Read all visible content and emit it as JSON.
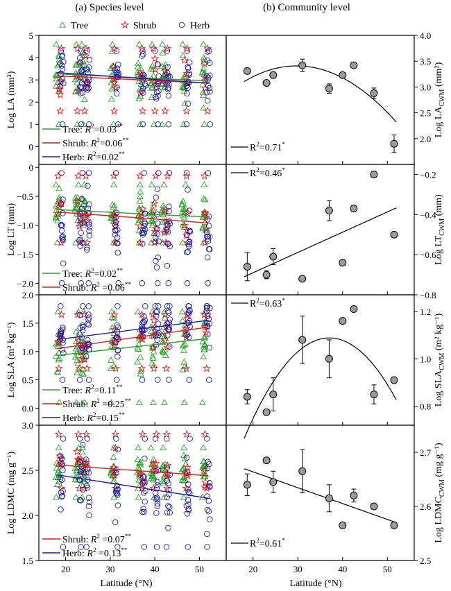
{
  "figure": {
    "col_a_title": "(a) Species level",
    "col_b_title": "(b) Community level",
    "legend": [
      {
        "label": "Tree",
        "marker": "triangle",
        "color": "#2ca02c"
      },
      {
        "label": "Shrub",
        "marker": "star",
        "color": "#e41a1c"
      },
      {
        "label": "Herb",
        "marker": "circle",
        "color": "#1f1f9f"
      }
    ],
    "x_label": "Latitude (°N)",
    "x_ticks": [
      20,
      30,
      40,
      50
    ]
  },
  "chart_data": [
    {
      "id": "la-species",
      "panel": "a",
      "type": "scatter",
      "ylabel": "Log LA (mm²)",
      "ylim": [
        -0.8,
        5.0
      ],
      "yticks": [
        "0",
        "1",
        "2",
        "3",
        "4",
        "5"
      ],
      "xlim": [
        14,
        56
      ],
      "latitudes": [
        18.7,
        23,
        24.5,
        31,
        37,
        40,
        42.5,
        47,
        51.5
      ],
      "series": [
        {
          "name": "Tree",
          "color": "#2ca02c",
          "fit": [
            [
              18,
              3.27
            ],
            [
              52,
              2.95
            ]
          ],
          "spread": [
            1.0,
            4.6
          ]
        },
        {
          "name": "Shrub",
          "color": "#e41a1c",
          "fit": [
            [
              18,
              3.18
            ],
            [
              52,
              2.85
            ]
          ],
          "spread": [
            1.6,
            4.4
          ]
        },
        {
          "name": "Herb",
          "color": "#1f1f9f",
          "fit": [
            [
              18,
              3.33
            ],
            [
              52,
              2.85
            ]
          ],
          "spread": [
            1.0,
            4.3
          ]
        }
      ],
      "stats": [
        {
          "label": "Tree: ",
          "r2": "=0.03",
          "sig": "**",
          "color": "#2ca02c"
        },
        {
          "label": "Shrub: ",
          "r2": "=0.06",
          "sig": "**",
          "color": "#e41a1c"
        },
        {
          "label": "Herb: ",
          "r2": "=0.02",
          "sig": "**",
          "color": "#1f1f9f"
        }
      ]
    },
    {
      "id": "la-community",
      "panel": "b",
      "type": "scatter",
      "ylabel": "Log LA",
      "ylabel_sub": "CWM",
      "ylabel_unit": " (mm²)",
      "ylim": [
        1.5,
        4.0
      ],
      "yticks": [
        "2.0",
        "2.5",
        "3.0",
        "3.5",
        "4.0"
      ],
      "ytick_vals": [
        2.0,
        2.5,
        3.0,
        3.5,
        4.0
      ],
      "xlim": [
        14,
        56
      ],
      "points": [
        {
          "x": 18.7,
          "y": 3.31,
          "err": 0
        },
        {
          "x": 23,
          "y": 3.08,
          "err": 0
        },
        {
          "x": 24.5,
          "y": 3.23,
          "err": 0.06
        },
        {
          "x": 31,
          "y": 3.42,
          "err": 0.12
        },
        {
          "x": 37,
          "y": 2.97,
          "err": 0.09
        },
        {
          "x": 40,
          "y": 3.23,
          "err": 0
        },
        {
          "x": 42.5,
          "y": 3.42,
          "err": 0
        },
        {
          "x": 47,
          "y": 2.88,
          "err": 0.1
        },
        {
          "x": 51.5,
          "y": 1.9,
          "err": 0.17
        }
      ],
      "fit": {
        "type": "quadratic",
        "x0": 18,
        "x1": 52,
        "coef": [
          -0.0022,
          0.1309,
          1.4614
        ]
      },
      "stats": [
        {
          "label": "",
          "r2": "=0.71",
          "sig": "*"
        }
      ]
    },
    {
      "id": "lt-species",
      "panel": "a",
      "type": "scatter",
      "ylabel": "Log LT (mm)",
      "ylim": [
        -2.2,
        0.05
      ],
      "yticks": [
        "−2.0",
        "−1.5",
        "−1.0",
        "−0.5",
        "0"
      ],
      "ytick_vals": [
        -2.0,
        -1.5,
        -1.0,
        -0.5,
        0
      ],
      "xlim": [
        14,
        56
      ],
      "latitudes": [
        18.7,
        23,
        24.5,
        31,
        37,
        40,
        42.5,
        47,
        51.5
      ],
      "series": [
        {
          "name": "Tree",
          "color": "#2ca02c",
          "fit": [
            [
              18,
              -0.73
            ],
            [
              52,
              -0.86
            ]
          ],
          "spread": [
            -1.3,
            -0.3
          ]
        },
        {
          "name": "Shrub",
          "color": "#e41a1c",
          "fit": [
            [
              18,
              -0.77
            ],
            [
              52,
              -0.96
            ]
          ],
          "spread": [
            -1.3,
            -0.15
          ]
        },
        {
          "name": "Herb",
          "color": "#1f1f9f",
          "fit": null,
          "spread": [
            -2.0,
            -0.1
          ]
        }
      ],
      "stats": [
        {
          "label": "Tree: ",
          "r2": "=0.02",
          "sig": "**",
          "color": "#2ca02c"
        },
        {
          "label": "Shrub: ",
          "r2": " =0.06",
          "sig": "**",
          "color": "#e41a1c"
        }
      ]
    },
    {
      "id": "lt-community",
      "panel": "b",
      "type": "scatter",
      "ylabel": "Log LT",
      "ylabel_sub": "CWM",
      "ylabel_unit": " (mm)",
      "ylim": [
        -0.8,
        -0.15
      ],
      "yticks": [
        "−0.8",
        "−0.6",
        "−0.4",
        "−0.2"
      ],
      "ytick_vals": [
        -0.8,
        -0.6,
        -0.4,
        -0.2
      ],
      "xlim": [
        14,
        56
      ],
      "points": [
        {
          "x": 18.7,
          "y": -0.66,
          "err": 0.07
        },
        {
          "x": 23,
          "y": -0.7,
          "err": 0.02
        },
        {
          "x": 24.5,
          "y": -0.61,
          "err": 0.04
        },
        {
          "x": 31,
          "y": -0.72,
          "err": 0.01
        },
        {
          "x": 37,
          "y": -0.38,
          "err": 0.05
        },
        {
          "x": 40,
          "y": -0.64,
          "err": 0.01
        },
        {
          "x": 42.5,
          "y": -0.37,
          "err": 0.015
        },
        {
          "x": 47,
          "y": -0.2,
          "err": 0.015
        },
        {
          "x": 51.5,
          "y": -0.5,
          "err": 0
        }
      ],
      "fit": {
        "type": "linear",
        "x0": 18,
        "x1": 52,
        "coef": [
          0.0101,
          -0.892
        ]
      },
      "stats": [
        {
          "label": "",
          "r2": "=0.46",
          "sig": "*"
        }
      ]
    },
    {
      "id": "sla-species",
      "panel": "a",
      "type": "scatter",
      "ylabel": "Log SLA (m² kg⁻¹)",
      "ylim": [
        -0.3,
        2.0
      ],
      "yticks": [
        "0.0",
        "0.5",
        "1.0",
        "1.5",
        "2.0"
      ],
      "ytick_vals": [
        0.0,
        0.5,
        1.0,
        1.5,
        2.0
      ],
      "xlim": [
        14,
        56
      ],
      "latitudes": [
        18.7,
        23,
        24.5,
        31,
        37,
        40,
        42.5,
        47,
        51.5
      ],
      "series": [
        {
          "name": "Tree",
          "color": "#2ca02c",
          "fit": [
            [
              18,
              0.93
            ],
            [
              52,
              1.23
            ]
          ],
          "spread": [
            0.1,
            1.7
          ]
        },
        {
          "name": "Shrub",
          "color": "#e41a1c",
          "fit": [
            [
              18,
              1.05
            ],
            [
              52,
              1.43
            ]
          ],
          "spread": [
            0.7,
            1.65
          ]
        },
        {
          "name": "Herb",
          "color": "#1f1f9f",
          "fit": [
            [
              18,
              1.21
            ],
            [
              52,
              1.55
            ]
          ],
          "spread": [
            0.5,
            1.8
          ]
        }
      ],
      "stats": [
        {
          "label": "Tree: ",
          "r2": "=0.11",
          "sig": "**",
          "color": "#2ca02c"
        },
        {
          "label": "Shrub: ",
          "r2": " =0.25",
          "sig": "**",
          "color": "#e41a1c"
        },
        {
          "label": "Herb: ",
          "r2": "=0.15",
          "sig": "**",
          "color": "#1f1f9f"
        }
      ]
    },
    {
      "id": "sla-community",
      "panel": "b",
      "type": "scatter",
      "ylabel": "Log SLA",
      "ylabel_sub": "CWM",
      "ylabel_unit": " (m² kg⁻¹)",
      "ylim": [
        0.72,
        1.27
      ],
      "yticks": [
        "0.8",
        "1.0",
        "1.2"
      ],
      "ytick_vals": [
        0.8,
        1.0,
        1.2
      ],
      "xlim": [
        14,
        56
      ],
      "points": [
        {
          "x": 18.7,
          "y": 0.84,
          "err": 0.03
        },
        {
          "x": 23,
          "y": 0.775,
          "err": 0
        },
        {
          "x": 24.5,
          "y": 0.85,
          "err": 0.07
        },
        {
          "x": 31,
          "y": 1.08,
          "err": 0.1
        },
        {
          "x": 37,
          "y": 1.0,
          "err": 0.08
        },
        {
          "x": 40,
          "y": 1.16,
          "err": 0
        },
        {
          "x": 42.5,
          "y": 1.21,
          "err": 0.005
        },
        {
          "x": 47,
          "y": 0.85,
          "err": 0.04
        },
        {
          "x": 51.5,
          "y": 0.91,
          "err": 0
        }
      ],
      "fit": {
        "type": "quadratic",
        "x0": 18,
        "x1": 52,
        "coef": [
          -0.00117,
          0.0867,
          -0.518
        ]
      },
      "stats": [
        {
          "label": "",
          "r2": "=0.63",
          "sig": "*"
        }
      ]
    },
    {
      "id": "ldmc-species",
      "panel": "a",
      "type": "scatter",
      "ylabel": "Log LDMC (mg g⁻¹)",
      "ylim": [
        1.5,
        3.0
      ],
      "yticks": [
        "1.5",
        "2.0",
        "2.5",
        "3.0"
      ],
      "ytick_vals": [
        1.5,
        2.0,
        2.5,
        3.0
      ],
      "xlim": [
        14,
        56
      ],
      "latitudes": [
        18.7,
        23,
        24.5,
        31,
        37,
        40,
        42.5,
        47,
        51.5
      ],
      "series": [
        {
          "name": "Tree",
          "color": "#2ca02c",
          "fit": null,
          "spread": [
            2.2,
            2.75
          ]
        },
        {
          "name": "Shrub",
          "color": "#e41a1c",
          "fit": [
            [
              18,
              2.56
            ],
            [
              52,
              2.44
            ]
          ],
          "spread": [
            2.3,
            2.9
          ]
        },
        {
          "name": "Herb",
          "color": "#1f1f9f",
          "fit": [
            [
              18,
              2.45
            ],
            [
              52,
              2.19
            ]
          ],
          "spread": [
            1.65,
            2.85
          ]
        }
      ],
      "stats": [
        {
          "label": "Shrub: ",
          "r2": " =0.07",
          "sig": "**",
          "color": "#e41a1c"
        },
        {
          "label": "Herb: ",
          "r2": " =0.13",
          "sig": "**",
          "color": "#1f1f9f"
        }
      ]
    },
    {
      "id": "ldmc-community",
      "panel": "b",
      "type": "scatter",
      "ylabel": "Log LDMC",
      "ylabel_sub": "CWM",
      "ylabel_unit": " (mg g⁻¹)",
      "ylim": [
        2.5,
        2.75
      ],
      "yticks": [
        "2.5",
        "2.6",
        "2.7"
      ],
      "ytick_vals": [
        2.5,
        2.6,
        2.7
      ],
      "xlim": [
        14,
        56
      ],
      "points": [
        {
          "x": 18.7,
          "y": 2.64,
          "err": 0.02
        },
        {
          "x": 23,
          "y": 2.685,
          "err": 0
        },
        {
          "x": 24.5,
          "y": 2.645,
          "err": 0.02
        },
        {
          "x": 31,
          "y": 2.665,
          "err": 0.04
        },
        {
          "x": 37,
          "y": 2.615,
          "err": 0.025
        },
        {
          "x": 40,
          "y": 2.565,
          "err": 0
        },
        {
          "x": 42.5,
          "y": 2.62,
          "err": 0.012
        },
        {
          "x": 47,
          "y": 2.6,
          "err": 0
        },
        {
          "x": 51.5,
          "y": 2.565,
          "err": 0
        }
      ],
      "fit": {
        "type": "linear",
        "x0": 18,
        "x1": 52,
        "coef": [
          -0.00293,
          2.7224
        ]
      },
      "stats": [
        {
          "label": "",
          "r2": "=0.61",
          "sig": "*"
        }
      ]
    }
  ]
}
